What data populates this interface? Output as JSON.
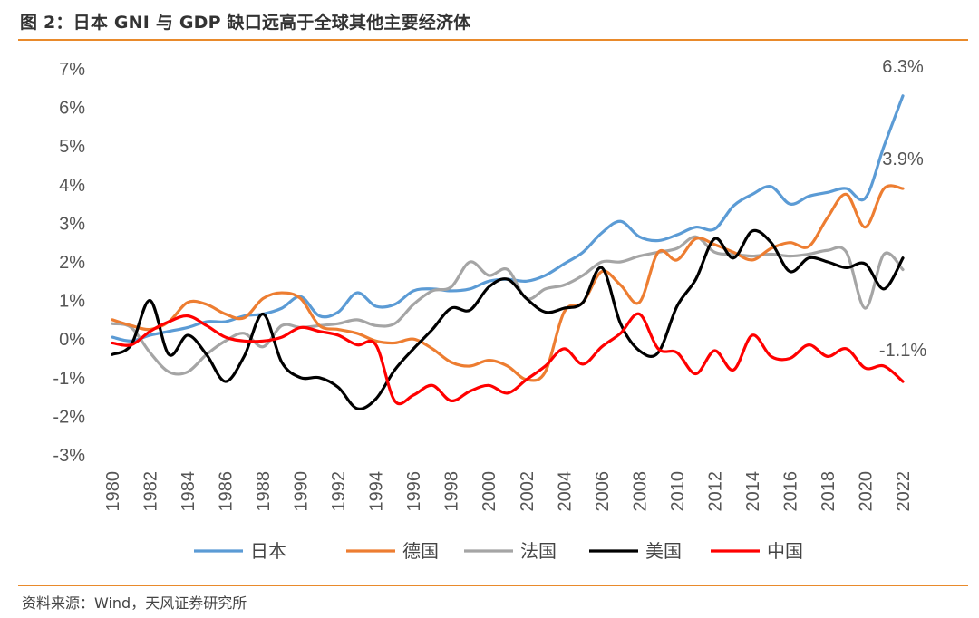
{
  "header": {
    "title": "图 2：日本 GNI 与 GDP 缺口远高于全球其他主要经济体"
  },
  "footer": {
    "source": "资料来源：Wind，天风证券研究所"
  },
  "colors": {
    "rule": "#e98a2b",
    "日本": "#5b9bd5",
    "德国": "#ed7d31",
    "法国": "#a5a5a5",
    "美国": "#000000",
    "中国": "#ff0000"
  },
  "chart_data": {
    "type": "line",
    "title": "",
    "xlabel": "",
    "ylabel": "",
    "ylim": [
      -3,
      7
    ],
    "yticks": [
      "7%",
      "6%",
      "5%",
      "4%",
      "3%",
      "2%",
      "1%",
      "0%",
      "-1%",
      "-2%",
      "-3%"
    ],
    "ytick_values": [
      7,
      6,
      5,
      4,
      3,
      2,
      1,
      0,
      -1,
      -2,
      -3
    ],
    "xticks": [
      "1980",
      "1982",
      "1984",
      "1986",
      "1988",
      "1990",
      "1992",
      "1994",
      "1996",
      "1998",
      "2000",
      "2002",
      "2004",
      "2006",
      "2008",
      "2010",
      "2012",
      "2014",
      "2016",
      "2018",
      "2020",
      "2022"
    ],
    "x": [
      1980,
      1981,
      1982,
      1983,
      1984,
      1985,
      1986,
      1987,
      1988,
      1989,
      1990,
      1991,
      1992,
      1993,
      1994,
      1995,
      1996,
      1997,
      1998,
      1999,
      2000,
      2001,
      2002,
      2003,
      2004,
      2005,
      2006,
      2007,
      2008,
      2009,
      2010,
      2011,
      2012,
      2013,
      2014,
      2015,
      2016,
      2017,
      2018,
      2019,
      2020,
      2021,
      2022
    ],
    "grid": false,
    "legend_position": "bottom",
    "series": [
      {
        "name": "日本",
        "color": "#5b9bd5",
        "values": [
          0.05,
          -0.05,
          0.1,
          0.2,
          0.3,
          0.45,
          0.45,
          0.6,
          0.65,
          0.8,
          1.1,
          0.6,
          0.7,
          1.2,
          0.85,
          0.9,
          1.25,
          1.3,
          1.25,
          1.3,
          1.5,
          1.55,
          1.5,
          1.65,
          1.95,
          2.25,
          2.75,
          3.05,
          2.65,
          2.55,
          2.7,
          2.9,
          2.85,
          3.45,
          3.75,
          3.95,
          3.5,
          3.7,
          3.8,
          3.9,
          3.65,
          5.0,
          6.3
        ]
      },
      {
        "name": "德国",
        "color": "#ed7d31",
        "values": [
          0.5,
          0.35,
          0.25,
          0.45,
          0.95,
          0.9,
          0.65,
          0.55,
          1.05,
          1.2,
          1.05,
          0.35,
          0.25,
          0.15,
          -0.05,
          -0.1,
          0.0,
          -0.25,
          -0.6,
          -0.7,
          -0.55,
          -0.7,
          -1.05,
          -0.85,
          0.7,
          0.95,
          1.75,
          1.4,
          0.95,
          2.25,
          2.05,
          2.6,
          2.45,
          2.25,
          2.05,
          2.35,
          2.5,
          2.4,
          3.15,
          3.75,
          2.9,
          3.9,
          3.9
        ]
      },
      {
        "name": "法国",
        "color": "#a5a5a5",
        "values": [
          0.4,
          0.3,
          -0.35,
          -0.85,
          -0.85,
          -0.4,
          -0.05,
          0.15,
          -0.2,
          0.35,
          0.3,
          0.35,
          0.4,
          0.5,
          0.35,
          0.4,
          0.9,
          1.25,
          1.35,
          2.0,
          1.65,
          1.8,
          1.05,
          1.3,
          1.4,
          1.65,
          2.0,
          2.0,
          2.15,
          2.25,
          2.35,
          2.65,
          2.25,
          2.2,
          2.15,
          2.2,
          2.15,
          2.2,
          2.3,
          2.25,
          0.8,
          2.2,
          1.8
        ]
      },
      {
        "name": "美国",
        "color": "#000000",
        "values": [
          -0.4,
          -0.15,
          1.0,
          -0.4,
          0.1,
          -0.4,
          -1.1,
          -0.45,
          0.65,
          -0.6,
          -1.0,
          -1.0,
          -1.25,
          -1.8,
          -1.55,
          -0.8,
          -0.25,
          0.25,
          0.8,
          0.75,
          1.35,
          1.55,
          1.05,
          0.7,
          0.8,
          0.95,
          1.85,
          0.4,
          -0.3,
          -0.35,
          0.85,
          1.55,
          2.6,
          2.1,
          2.8,
          2.5,
          1.75,
          2.1,
          2.0,
          1.85,
          1.95,
          1.3,
          2.1
        ]
      },
      {
        "name": "中国",
        "color": "#ff0000",
        "values": [
          -0.1,
          -0.15,
          0.2,
          0.45,
          0.6,
          0.35,
          0.05,
          -0.05,
          -0.05,
          0.05,
          0.3,
          0.2,
          0.1,
          -0.15,
          -0.15,
          -1.6,
          -1.45,
          -1.2,
          -1.6,
          -1.35,
          -1.2,
          -1.4,
          -1.05,
          -0.7,
          -0.25,
          -0.65,
          -0.2,
          0.15,
          0.65,
          -0.25,
          -0.35,
          -0.9,
          -0.3,
          -0.8,
          0.1,
          -0.45,
          -0.5,
          -0.15,
          -0.45,
          -0.25,
          -0.75,
          -0.7,
          -1.1
        ]
      }
    ],
    "annotations": [
      {
        "series": "日本",
        "x": 2022,
        "label": "6.3%"
      },
      {
        "series": "德国",
        "x": 2022,
        "label": "3.9%"
      },
      {
        "series": "中国",
        "x": 2022,
        "label": "-1.1%"
      }
    ]
  }
}
